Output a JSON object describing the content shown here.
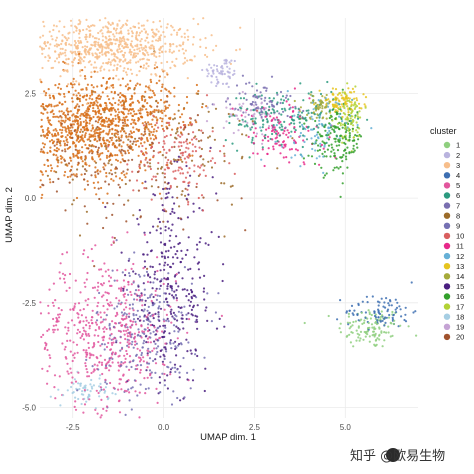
{
  "chart_data": {
    "type": "scatter",
    "title": "",
    "xlabel": "UMAP dim. 1",
    "ylabel": "UMAP dim. 2",
    "xlim": [
      -3.4,
      7.0
    ],
    "ylim": [
      -5.25,
      4.3
    ],
    "x_ticks": [
      -2.5,
      0.0,
      2.5,
      5.0
    ],
    "x_tick_labels": [
      "-2.5",
      "0.0",
      "2.5",
      "5.0"
    ],
    "y_ticks": [
      -5.0,
      -2.5,
      0.0,
      2.5
    ],
    "y_tick_labels": [
      "-5.0",
      "-2.5",
      "0.0",
      "2.5"
    ],
    "grid": true,
    "legend": {
      "title": "cluster",
      "placement": "right",
      "entries": [
        "1",
        "2",
        "3",
        "4",
        "5",
        "6",
        "7",
        "8",
        "9",
        "10",
        "11",
        "12",
        "13",
        "14",
        "15",
        "16",
        "17",
        "18",
        "19",
        "20"
      ]
    },
    "series": [
      {
        "name": "1",
        "color": "#8fcf7f",
        "center": [
          5.7,
          -3.1
        ],
        "spread": [
          0.45,
          0.25
        ],
        "n": 120
      },
      {
        "name": "2",
        "color": "#b9b3de",
        "center": [
          1.6,
          3.0
        ],
        "spread": [
          0.25,
          0.2
        ],
        "n": 60
      },
      {
        "name": "3",
        "color": "#f7be8b",
        "center": [
          -1.5,
          3.6
        ],
        "spread": [
          1.2,
          0.35
        ],
        "n": 700
      },
      {
        "name": "4",
        "color": "#3d6fb2",
        "center": [
          6.0,
          -2.7
        ],
        "spread": [
          0.5,
          0.2
        ],
        "n": 90
      },
      {
        "name": "5",
        "color": "#e2569d",
        "center": [
          -1.6,
          -3.2
        ],
        "spread": [
          1.0,
          0.9
        ],
        "n": 550
      },
      {
        "name": "6",
        "color": "#2c9a7f",
        "center": [
          3.3,
          1.9
        ],
        "spread": [
          0.8,
          0.35
        ],
        "n": 170
      },
      {
        "name": "7",
        "color": "#7a6fb0",
        "center": [
          2.7,
          2.3
        ],
        "spread": [
          0.45,
          0.25
        ],
        "n": 80
      },
      {
        "name": "8",
        "color": "#9c6c2a",
        "center": [
          -0.4,
          1.2
        ],
        "spread": [
          1.6,
          0.8
        ],
        "n": 140
      },
      {
        "name": "9",
        "color": "#7570b3",
        "center": [
          -0.5,
          -3.2
        ],
        "spread": [
          0.7,
          0.8
        ],
        "n": 260
      },
      {
        "name": "10",
        "color": "#d95f5f",
        "center": [
          0.4,
          1.0
        ],
        "spread": [
          0.6,
          0.5
        ],
        "n": 150
      },
      {
        "name": "11",
        "color": "#e7298a",
        "center": [
          3.2,
          1.5
        ],
        "spread": [
          0.6,
          0.4
        ],
        "n": 110
      },
      {
        "name": "12",
        "color": "#66b0d6",
        "center": [
          4.2,
          1.6
        ],
        "spread": [
          0.5,
          0.4
        ],
        "n": 80
      },
      {
        "name": "13",
        "color": "#e6c41f",
        "center": [
          4.9,
          2.3
        ],
        "spread": [
          0.3,
          0.15
        ],
        "n": 90
      },
      {
        "name": "14",
        "color": "#a6aa3a",
        "center": [
          4.3,
          2.2
        ],
        "spread": [
          0.25,
          0.15
        ],
        "n": 50
      },
      {
        "name": "15",
        "color": "#4a1f80",
        "center": [
          0.2,
          -2.2
        ],
        "spread": [
          0.6,
          1.2
        ],
        "n": 320
      },
      {
        "name": "16",
        "color": "#33a02c",
        "center": [
          4.8,
          1.4
        ],
        "spread": [
          0.35,
          0.4
        ],
        "n": 160
      },
      {
        "name": "17",
        "color": "#b2d235",
        "center": [
          5.1,
          1.9
        ],
        "spread": [
          0.2,
          0.3
        ],
        "n": 80
      },
      {
        "name": "18",
        "color": "#a6cee3",
        "center": [
          -2.1,
          -4.6
        ],
        "spread": [
          0.3,
          0.15
        ],
        "n": 60
      },
      {
        "name": "19",
        "color": "#c5a3d4",
        "center": [
          2.3,
          2.0
        ],
        "spread": [
          0.4,
          0.2
        ],
        "n": 50
      },
      {
        "name": "20",
        "color": "#a0522d",
        "center": [
          -1.4,
          0.9
        ],
        "spread": [
          1.4,
          0.8
        ],
        "n": 160
      }
    ],
    "extra_series_points": [
      {
        "series": "20",
        "color": "#d8701a",
        "center": [
          -2.2,
          1.6
        ],
        "spread": [
          0.9,
          0.6
        ],
        "n": 800
      },
      {
        "series": "20",
        "color": "#d8701a",
        "center": [
          -0.8,
          2.1
        ],
        "spread": [
          0.8,
          0.4
        ],
        "n": 300
      }
    ]
  },
  "watermark": {
    "text": "知乎 @欧易生物"
  }
}
